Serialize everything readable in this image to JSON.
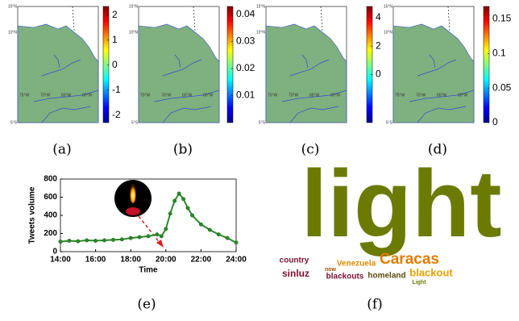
{
  "figure": {
    "map_labels": {
      "lat": [
        "15°N",
        "10°N",
        "5°S"
      ],
      "lon": [
        "75°W",
        "70°W",
        "65°W",
        "60°W"
      ]
    },
    "maps": [
      {
        "label": "(a)",
        "colorbar": {
          "lim": [
            -2.3,
            2.35
          ],
          "ticks": [
            2,
            1,
            0,
            -1,
            -2
          ]
        }
      },
      {
        "label": "(b)",
        "colorbar": {
          "lim": [
            0,
            0.043
          ],
          "ticks": [
            0.04,
            0.03,
            0.02,
            0.01
          ]
        }
      },
      {
        "label": "(c)",
        "colorbar": {
          "lim": [
            -3.4,
            4.8
          ],
          "ticks": [
            4,
            2,
            0
          ]
        }
      },
      {
        "label": "(d)",
        "colorbar": {
          "lim": [
            0,
            0.168
          ],
          "ticks": [
            0.15,
            0.1,
            0.05,
            0
          ]
        }
      }
    ],
    "word_cloud": {
      "label": "(f)",
      "words": [
        {
          "text": "light",
          "color": "#6b7a00"
        },
        {
          "text": "Caracas",
          "color": "#e07b00"
        },
        {
          "text": "blackout",
          "color": "#e8a000"
        },
        {
          "text": "country",
          "color": "#7a1030"
        },
        {
          "text": "Venezuela",
          "color": "#e08a00"
        },
        {
          "text": "sinluz",
          "color": "#7a1030"
        },
        {
          "text": "blackouts",
          "color": "#7a1030"
        },
        {
          "text": "homeland",
          "color": "#5a4a10"
        },
        {
          "text": "Light",
          "color": "#6b7a00"
        },
        {
          "text": "now",
          "color": "#a05000"
        }
      ]
    }
  },
  "chart_data": {
    "type": "line",
    "label": "(e)",
    "xlabel": "Time",
    "ylabel": "Tweets volume",
    "x": [
      14,
      14.5,
      15,
      15.5,
      16,
      16.5,
      17,
      17.5,
      18,
      18.5,
      19,
      19.5,
      19.75,
      20,
      20.25,
      20.5,
      20.75,
      21,
      21.25,
      21.5,
      22,
      22.5,
      23,
      23.5,
      24
    ],
    "values": [
      110,
      120,
      115,
      125,
      120,
      125,
      130,
      135,
      150,
      160,
      170,
      190,
      170,
      250,
      420,
      560,
      640,
      580,
      480,
      400,
      300,
      240,
      190,
      150,
      100
    ],
    "color": "#2a8a2a",
    "xlim": [
      14,
      24
    ],
    "xticks": [
      {
        "value": 14,
        "label": "14:00"
      },
      {
        "value": 16,
        "label": "16:00"
      },
      {
        "value": 18,
        "label": "18:00"
      },
      {
        "value": 20,
        "label": "20:00"
      },
      {
        "value": 22,
        "label": "22:00"
      },
      {
        "value": 24,
        "label": "24:00"
      }
    ],
    "ylim": [
      0,
      800
    ],
    "yticks": [
      0,
      200,
      400,
      600,
      800
    ]
  }
}
